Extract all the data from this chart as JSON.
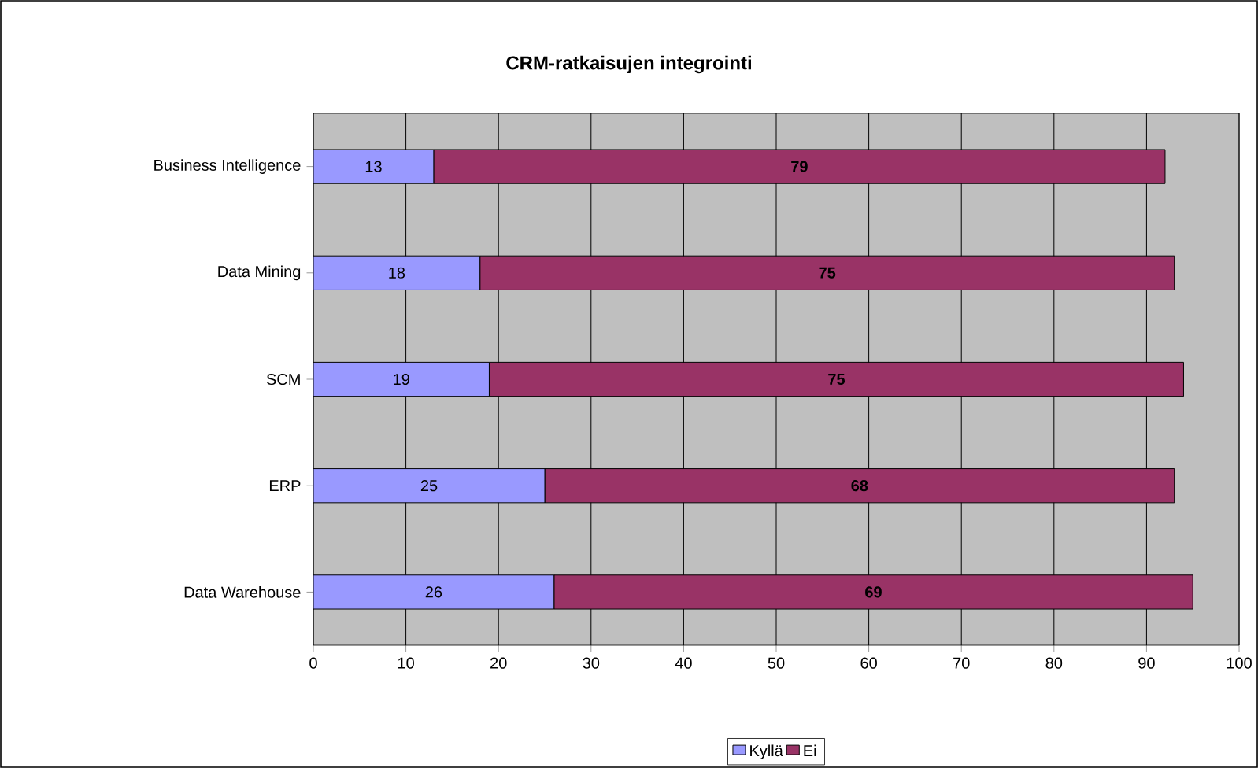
{
  "chart_data": {
    "type": "bar",
    "orientation": "horizontal",
    "stacked": true,
    "title": "CRM-ratkaisujen integrointi",
    "categories": [
      "Business Intelligence",
      "Data Mining",
      "SCM",
      "ERP",
      "Data Warehouse"
    ],
    "series": [
      {
        "name": "Kyllä",
        "color": "#9999ff",
        "values": [
          13,
          18,
          19,
          25,
          26
        ]
      },
      {
        "name": "Ei",
        "color": "#993366",
        "values": [
          79,
          75,
          75,
          68,
          69
        ]
      }
    ],
    "xlim": [
      0,
      100
    ],
    "xticks": [
      0,
      10,
      20,
      30,
      40,
      50,
      60,
      70,
      80,
      90,
      100
    ],
    "grid": "x",
    "legend": "bottom",
    "data_labels": true
  }
}
